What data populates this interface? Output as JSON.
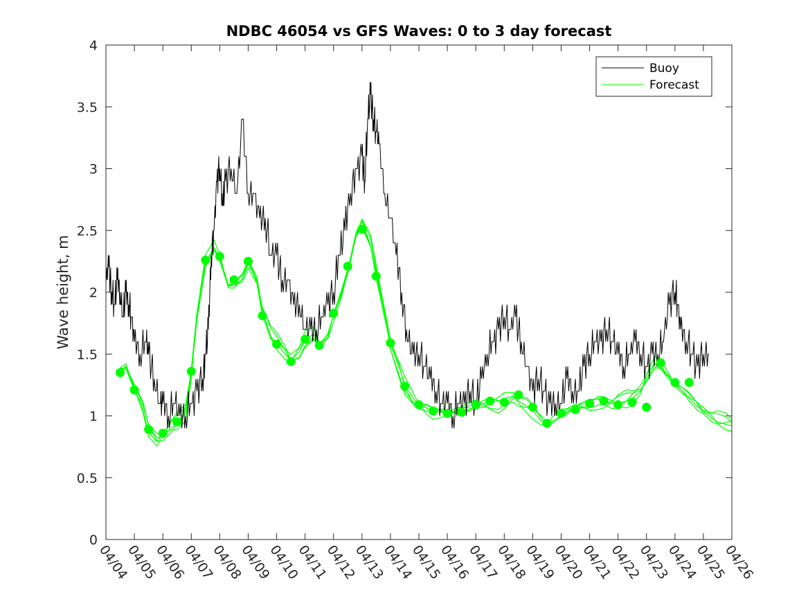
{
  "chart_data": {
    "type": "line",
    "title": "NDBC 46054 vs GFS Waves: 0 to 3 day forecast",
    "xlabel": "",
    "ylabel": "Wave height, m",
    "ylim": [
      0,
      4
    ],
    "xlim": [
      0,
      22
    ],
    "yticks": [
      0,
      0.5,
      1,
      1.5,
      2,
      2.5,
      3,
      3.5,
      4
    ],
    "yticklabels": [
      "0",
      "0.5",
      "1",
      "1.5",
      "2",
      "2.5",
      "3",
      "3.5",
      "4"
    ],
    "xtick_labels": [
      "04/04",
      "04/05",
      "04/06",
      "04/07",
      "04/08",
      "04/09",
      "04/10",
      "04/11",
      "04/12",
      "04/13",
      "04/14",
      "04/15",
      "04/16",
      "04/17",
      "04/18",
      "04/19",
      "04/20",
      "04/21",
      "04/22",
      "04/23",
      "04/24",
      "04/25",
      "04/26"
    ],
    "legend": {
      "placement": "top-right",
      "entries": [
        "Buoy",
        "Forecast"
      ]
    },
    "colors": {
      "buoy": "#000000",
      "forecast": "#00ff00",
      "axis": "#262626"
    },
    "buoy": {
      "name": "Buoy",
      "x": [
        0,
        0.1,
        0.2,
        0.3,
        0.4,
        0.5,
        0.6,
        0.7,
        0.8,
        0.9,
        1.0,
        1.2,
        1.4,
        1.5,
        1.7,
        1.9,
        2.0,
        2.2,
        2.4,
        2.6,
        2.8,
        3.0,
        3.2,
        3.4,
        3.5,
        3.6,
        3.7,
        3.8,
        3.9,
        4.0,
        4.1,
        4.2,
        4.4,
        4.6,
        4.8,
        5.0,
        5.2,
        5.4,
        5.6,
        5.8,
        6.0,
        6.2,
        6.4,
        6.6,
        6.8,
        7.0,
        7.2,
        7.4,
        7.6,
        7.8,
        8.0,
        8.2,
        8.4,
        8.6,
        8.8,
        9.0,
        9.1,
        9.2,
        9.3,
        9.4,
        9.5,
        9.6,
        9.8,
        10.0,
        10.2,
        10.4,
        10.6,
        10.8,
        11.0,
        11.2,
        11.4,
        11.6,
        11.8,
        12.0,
        12.2,
        12.4,
        12.6,
        12.8,
        13.0,
        13.2,
        13.4,
        13.6,
        13.8,
        14.0,
        14.2,
        14.4,
        14.6,
        14.8,
        15.0,
        15.2,
        15.4,
        15.6,
        15.8,
        16.0,
        16.2,
        16.4,
        16.6,
        16.8,
        17.0,
        17.2,
        17.4,
        17.6,
        17.8,
        18.0,
        18.2,
        18.4,
        18.6,
        18.8,
        19.0,
        19.2,
        19.4,
        19.6,
        19.8,
        20.0,
        20.1,
        20.2,
        20.4,
        20.6,
        20.8,
        21.0,
        21.2
      ],
      "values": [
        2.1,
        2.2,
        2.0,
        1.9,
        2.1,
        2.0,
        1.8,
        2.0,
        1.9,
        1.8,
        1.6,
        1.5,
        1.6,
        1.5,
        1.3,
        1.1,
        1.1,
        1.0,
        1.1,
        1.0,
        1.0,
        1.1,
        1.2,
        1.3,
        1.5,
        1.7,
        2.3,
        2.5,
        2.9,
        3.0,
        2.7,
        2.9,
        3.0,
        2.8,
        3.4,
        2.8,
        2.8,
        2.6,
        2.6,
        2.3,
        2.3,
        2.1,
        2.1,
        1.9,
        1.9,
        1.7,
        1.7,
        1.7,
        1.8,
        1.9,
        2.0,
        2.3,
        2.5,
        2.8,
        3.0,
        3.1,
        2.9,
        3.4,
        3.6,
        3.4,
        3.3,
        3.2,
        2.8,
        2.6,
        2.3,
        2.0,
        1.6,
        1.5,
        1.5,
        1.4,
        1.3,
        1.2,
        1.1,
        1.1,
        1.0,
        1.1,
        1.1,
        1.2,
        1.1,
        1.3,
        1.5,
        1.6,
        1.7,
        1.8,
        1.7,
        1.8,
        1.6,
        1.4,
        1.2,
        1.3,
        1.2,
        1.1,
        1.1,
        1.1,
        1.3,
        1.2,
        1.2,
        1.4,
        1.5,
        1.6,
        1.6,
        1.7,
        1.6,
        1.5,
        1.4,
        1.5,
        1.6,
        1.5,
        1.4,
        1.5,
        1.5,
        1.6,
        1.9,
        2.0,
        1.9,
        1.7,
        1.6,
        1.5,
        1.4,
        1.5,
        1.5
      ]
    },
    "forecast_cycles": [
      {
        "x": [
          0.5,
          0.7,
          1.0,
          1.3,
          1.5,
          1.8,
          2.0,
          2.3,
          2.5,
          2.8,
          3.0,
          3.2,
          3.5,
          3.8,
          4.0,
          4.3,
          4.5,
          4.8,
          5.0,
          5.3,
          5.5,
          5.8,
          6.0,
          6.3,
          6.5,
          6.8,
          7.0,
          7.3,
          7.5,
          7.8,
          8.0,
          8.3,
          8.5,
          8.8,
          9.0,
          9.3,
          9.5,
          9.8,
          10.0,
          10.3,
          10.5,
          10.8,
          11.0,
          11.3,
          11.5,
          11.8,
          12.0,
          12.3,
          12.5,
          12.8,
          13.0,
          13.3,
          13.5,
          13.8,
          14.0,
          14.3,
          14.5,
          14.8,
          15.0,
          15.3,
          15.5,
          15.8,
          16.0,
          16.3,
          16.5,
          16.8,
          17.0,
          17.3,
          17.5,
          17.8,
          18.0,
          18.3,
          18.5,
          18.8,
          19.0,
          19.3,
          19.5,
          19.8,
          20.0,
          20.3,
          20.5,
          20.8,
          21.0,
          21.3,
          21.5,
          21.8,
          22.0
        ],
        "values": [
          1.36,
          1.4,
          1.24,
          1.1,
          0.92,
          0.82,
          0.84,
          0.9,
          0.94,
          1.02,
          1.33,
          1.8,
          2.24,
          2.36,
          2.28,
          2.06,
          2.08,
          2.14,
          2.26,
          2.1,
          1.84,
          1.64,
          1.58,
          1.5,
          1.45,
          1.52,
          1.62,
          1.66,
          1.58,
          1.66,
          1.82,
          2.02,
          2.18,
          2.46,
          2.54,
          2.38,
          2.14,
          1.82,
          1.58,
          1.4,
          1.26,
          1.14,
          1.1,
          1.06,
          1.04,
          1.03,
          1.02,
          1.02,
          1.03,
          1.05,
          1.08,
          1.1,
          1.12,
          1.12,
          1.14,
          1.16,
          1.12,
          1.08,
          1.04,
          0.96,
          0.92,
          0.96,
          1.0,
          1.04,
          1.08,
          1.1,
          1.12,
          1.14,
          1.12,
          1.1,
          1.1,
          1.12,
          1.14,
          1.2,
          1.3,
          1.42,
          1.4,
          1.32,
          1.27,
          1.22,
          1.18,
          1.1,
          1.04,
          0.98,
          0.95,
          0.93,
          0.92
        ]
      }
    ],
    "markers": {
      "x": [
        0.5,
        1.0,
        1.5,
        2.0,
        2.5,
        3.0,
        3.5,
        4.0,
        4.5,
        5.0,
        5.5,
        6.0,
        6.5,
        7.0,
        7.5,
        8.0,
        8.5,
        9.0,
        9.5,
        10.0,
        10.5,
        11.0,
        11.5,
        12.0,
        12.5,
        13.0,
        13.5,
        14.0,
        14.5,
        15.0,
        15.5,
        16.0,
        16.5,
        17.0,
        17.5,
        18.0,
        18.5,
        19.0,
        19.5,
        20.0,
        20.5,
        21.0
      ],
      "values": [
        1.35,
        1.21,
        0.89,
        0.86,
        0.95,
        1.36,
        2.26,
        2.29,
        2.1,
        2.25,
        1.81,
        1.58,
        1.44,
        1.62,
        1.57,
        1.83,
        2.21,
        2.51,
        2.13,
        1.59,
        1.24,
        1.09,
        1.04,
        1.02,
        1.03,
        1.09,
        1.12,
        1.11,
        1.17,
        1.07,
        0.94,
        1.02,
        1.05,
        1.1,
        1.12,
        1.09,
        1.11,
        1.07,
        1.43,
        1.27,
        1.27,
        null
      ]
    }
  }
}
